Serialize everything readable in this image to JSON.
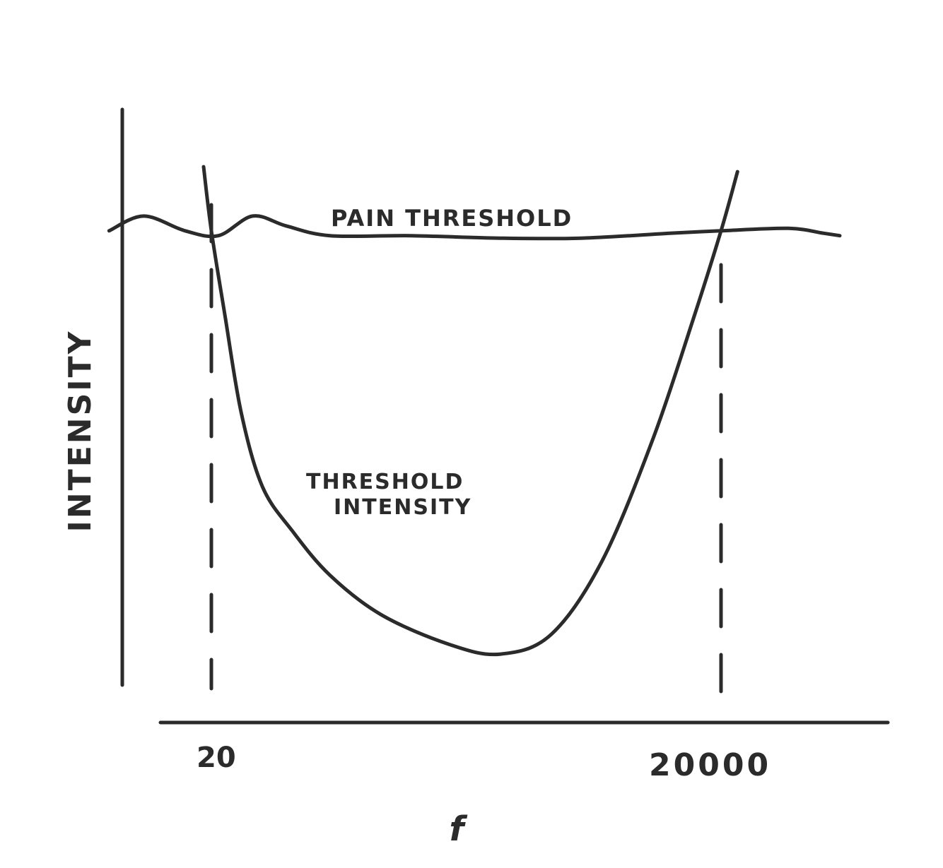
{
  "chart_data": {
    "type": "line",
    "title": "",
    "xlabel": "f",
    "ylabel": "INTENSITY",
    "x_ticks": [
      "20",
      "20000"
    ],
    "x_scale": "log",
    "grid": false,
    "series": [
      {
        "name": "PAIN THRESHOLD",
        "points": [
          {
            "x": 5,
            "y": 0.92
          },
          {
            "x": 8,
            "y": 0.95
          },
          {
            "x": 14,
            "y": 0.92
          },
          {
            "x": 22,
            "y": 0.91
          },
          {
            "x": 35,
            "y": 0.95
          },
          {
            "x": 55,
            "y": 0.93
          },
          {
            "x": 100,
            "y": 0.91
          },
          {
            "x": 300,
            "y": 0.91
          },
          {
            "x": 1000,
            "y": 0.905
          },
          {
            "x": 3000,
            "y": 0.905
          },
          {
            "x": 10000,
            "y": 0.915
          },
          {
            "x": 20000,
            "y": 0.92
          },
          {
            "x": 50000,
            "y": 0.925
          },
          {
            "x": 80000,
            "y": 0.915
          },
          {
            "x": 100000,
            "y": 0.91
          }
        ]
      },
      {
        "name": "THRESHOLD INTENSITY",
        "points": [
          {
            "x": 18,
            "y": 1.05
          },
          {
            "x": 20,
            "y": 0.92
          },
          {
            "x": 24,
            "y": 0.75
          },
          {
            "x": 30,
            "y": 0.55
          },
          {
            "x": 40,
            "y": 0.4
          },
          {
            "x": 60,
            "y": 0.31
          },
          {
            "x": 100,
            "y": 0.22
          },
          {
            "x": 200,
            "y": 0.14
          },
          {
            "x": 500,
            "y": 0.08
          },
          {
            "x": 1000,
            "y": 0.06
          },
          {
            "x": 2000,
            "y": 0.1
          },
          {
            "x": 4000,
            "y": 0.25
          },
          {
            "x": 8000,
            "y": 0.5
          },
          {
            "x": 14000,
            "y": 0.75
          },
          {
            "x": 20000,
            "y": 0.92
          },
          {
            "x": 25000,
            "y": 1.04
          }
        ]
      }
    ],
    "reference_lines": [
      {
        "x": 20,
        "style": "dashed"
      },
      {
        "x": 20000,
        "style": "dashed"
      }
    ]
  }
}
